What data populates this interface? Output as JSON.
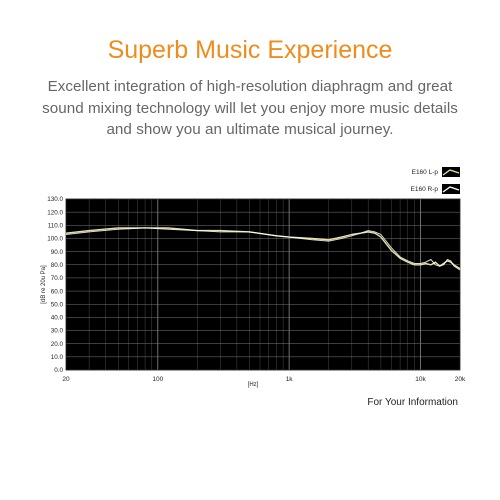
{
  "headline": "Superb Music Experience",
  "description_lines": [
    "Excellent integration of high-resolution diaphragm and great",
    "sound mixing technology will let you enjoy more music details",
    "and show you an ultimate musical journey."
  ],
  "note": "For Your Information",
  "colors": {
    "headline": "#ee8d1e",
    "description": "#666666",
    "plot_background": "#000000",
    "curve": "#e8e2a0"
  },
  "chart_data": {
    "type": "line",
    "title": "",
    "xlabel": "[Hz]",
    "ylabel": "[dB re 20u Pa]",
    "x_scale": "log",
    "xlim": [
      20,
      20000
    ],
    "ylim": [
      0,
      130
    ],
    "x_ticks": [
      {
        "value": 20,
        "label": "20"
      },
      {
        "value": 100,
        "label": "100"
      },
      {
        "value": 1000,
        "label": "1k"
      },
      {
        "value": 10000,
        "label": "10k"
      },
      {
        "value": 20000,
        "label": "20k"
      }
    ],
    "y_ticks": [
      {
        "value": 0,
        "label": "0.0"
      },
      {
        "value": 10,
        "label": "10.0"
      },
      {
        "value": 20,
        "label": "20.0"
      },
      {
        "value": 30,
        "label": "30.0"
      },
      {
        "value": 40,
        "label": "40.0"
      },
      {
        "value": 50,
        "label": "50.0"
      },
      {
        "value": 60,
        "label": "60.0"
      },
      {
        "value": 70,
        "label": "70.0"
      },
      {
        "value": 80,
        "label": "80.0"
      },
      {
        "value": 90,
        "label": "90.0"
      },
      {
        "value": 100,
        "label": "100.0"
      },
      {
        "value": 110,
        "label": "110.0"
      },
      {
        "value": 120,
        "label": "120.0"
      },
      {
        "value": 130,
        "label": "130.0"
      }
    ],
    "grid": true,
    "legend": "top-right",
    "series": [
      {
        "name": "E160 L-p",
        "x": [
          20,
          30,
          50,
          80,
          120,
          200,
          300,
          500,
          800,
          1000,
          1500,
          2000,
          2500,
          3000,
          3500,
          4000,
          4500,
          5000,
          6000,
          7000,
          8000,
          9000,
          10000,
          11000,
          12000,
          13000,
          14000,
          15000,
          16000,
          17000,
          18000,
          20000
        ],
        "y": [
          104,
          106,
          108,
          108,
          108,
          106,
          106,
          105,
          102,
          101,
          100,
          99,
          101,
          103,
          104,
          105,
          104,
          101,
          91,
          85,
          82,
          80,
          80,
          81,
          80,
          82,
          79,
          81,
          83,
          82,
          80,
          77
        ]
      },
      {
        "name": "E160 R-p",
        "x": [
          20,
          30,
          50,
          80,
          120,
          200,
          300,
          500,
          800,
          1000,
          1500,
          2000,
          2500,
          3000,
          3500,
          4000,
          4500,
          5000,
          6000,
          7000,
          8000,
          9000,
          10000,
          11000,
          12000,
          13000,
          14000,
          15000,
          16000,
          17000,
          18000,
          20000
        ],
        "y": [
          103,
          105,
          107,
          108,
          107,
          106,
          105,
          105,
          102,
          101,
          99,
          98,
          100,
          102,
          104,
          106,
          105,
          103,
          93,
          86,
          83,
          81,
          81,
          82,
          84,
          80,
          79,
          80,
          84,
          83,
          79,
          76
        ]
      }
    ]
  }
}
